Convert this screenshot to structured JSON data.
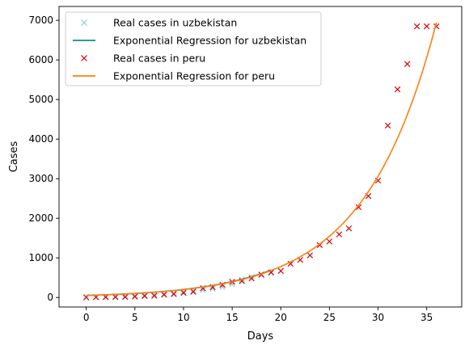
{
  "chart_data": {
    "type": "line",
    "title": "",
    "xlabel": "Days",
    "ylabel": "Cases",
    "xlim": [
      -2.8,
      38.6
    ],
    "ylim": [
      -240,
      7350
    ],
    "xticks": [
      0,
      5,
      10,
      15,
      20,
      25,
      30,
      35
    ],
    "yticks": [
      0,
      1000,
      2000,
      3000,
      4000,
      5000,
      6000,
      7000
    ],
    "grid": false,
    "legend_position": "top-left",
    "series": [
      {
        "name": "Real cases in uzbekistan",
        "kind": "markers",
        "marker": "x",
        "color": "#87ceeb",
        "x": [
          0,
          1,
          2,
          3,
          4,
          5,
          6,
          7,
          8,
          9,
          10,
          11,
          12,
          13,
          14,
          15,
          16,
          17,
          18,
          19
        ],
        "y": [
          10,
          15,
          23,
          33,
          43,
          46,
          60,
          75,
          88,
          104,
          149,
          173,
          190,
          221,
          266,
          342,
          455,
          521,
          560,
          620
        ]
      },
      {
        "name": "Exponential Regression for uzbekistan",
        "kind": "line",
        "color": "#0e8c8c",
        "fit": {
          "a": 52.3,
          "b": 0.136
        },
        "x_range": [
          0,
          19
        ]
      },
      {
        "name": "Real cases in peru",
        "kind": "markers",
        "marker": "x",
        "color": "#dd0000",
        "x": [
          0,
          1,
          2,
          3,
          4,
          5,
          6,
          7,
          8,
          9,
          10,
          11,
          12,
          13,
          14,
          15,
          16,
          17,
          18,
          19,
          20,
          21,
          22,
          23,
          24,
          25,
          26,
          27,
          28,
          29,
          30,
          31,
          32,
          33,
          34,
          35,
          36
        ],
        "y": [
          1,
          6,
          7,
          9,
          11,
          22,
          38,
          43,
          71,
          86,
          117,
          145,
          234,
          263,
          318,
          395,
          416,
          480,
          580,
          635,
          671,
          852,
          950,
          1065,
          1323,
          1414,
          1595,
          1746,
          2281,
          2561,
          2954,
          4342,
          5256,
          5897,
          6848,
          6848,
          6848
        ]
      },
      {
        "name": "Exponential Regression for peru",
        "kind": "line",
        "color": "#ff7f0e",
        "fit": {
          "a": 51.0,
          "b": 0.1365
        },
        "x_range": [
          0,
          36
        ]
      }
    ]
  }
}
